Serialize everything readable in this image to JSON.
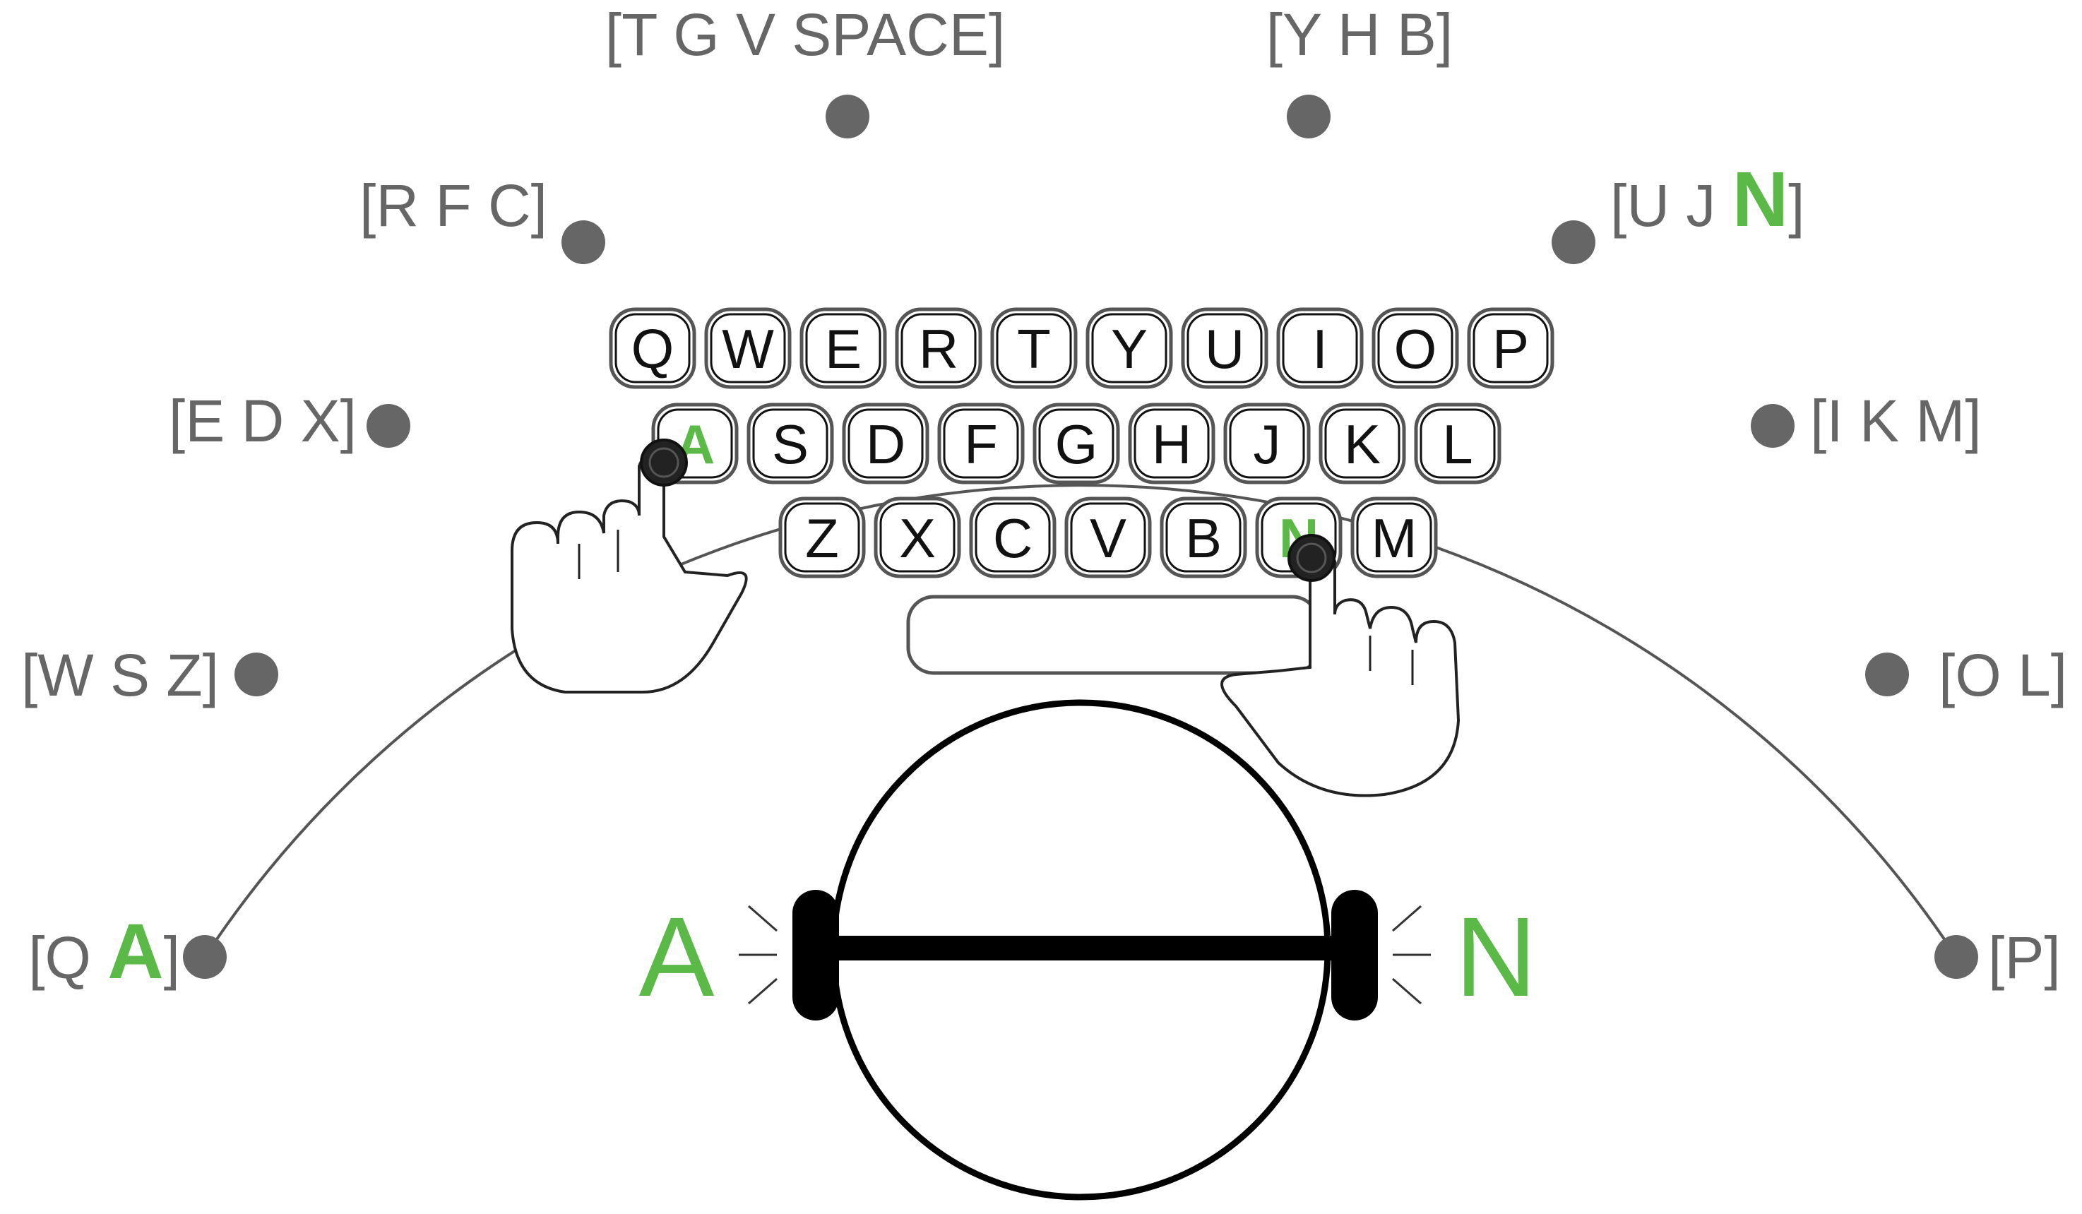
{
  "accent_color": "#5bb947",
  "arc_labels": [
    {
      "id": "q",
      "pre": "[Q ",
      "hl": "A",
      "post": "]"
    },
    {
      "id": "w",
      "pre": "[W S Z]",
      "hl": "",
      "post": ""
    },
    {
      "id": "e",
      "pre": "[E D X]",
      "hl": "",
      "post": ""
    },
    {
      "id": "r",
      "pre": "[R F C]",
      "hl": "",
      "post": ""
    },
    {
      "id": "t",
      "pre": "[T G V SPACE]",
      "hl": "",
      "post": ""
    },
    {
      "id": "y",
      "pre": "[Y H B]",
      "hl": "",
      "post": ""
    },
    {
      "id": "u",
      "pre": "[U J ",
      "hl": "N",
      "post": "]"
    },
    {
      "id": "i",
      "pre": "[I K M]",
      "hl": "",
      "post": ""
    },
    {
      "id": "o",
      "pre": "[O L]",
      "hl": "",
      "post": ""
    },
    {
      "id": "p",
      "pre": "[P]",
      "hl": "",
      "post": ""
    }
  ],
  "keyboard_rows": [
    [
      "Q",
      "W",
      "E",
      "R",
      "T",
      "Y",
      "U",
      "I",
      "O",
      "P"
    ],
    [
      "A",
      "S",
      "D",
      "F",
      "G",
      "H",
      "J",
      "K",
      "L"
    ],
    [
      "Z",
      "X",
      "C",
      "V",
      "B",
      "N",
      "M"
    ]
  ],
  "highlighted_keys": [
    "A",
    "N"
  ],
  "left_output": "A",
  "right_output": "N",
  "icons": {
    "left_hand": "pointing-hand-icon",
    "right_hand": "pointing-hand-icon",
    "head": "head-with-headphones-icon"
  }
}
